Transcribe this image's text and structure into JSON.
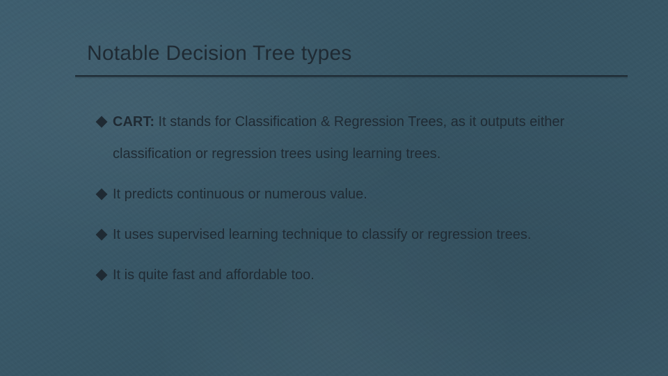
{
  "slide": {
    "title": "Notable Decision Tree types",
    "bullets": [
      {
        "lead": "CART:",
        "text": " It stands for Classification & Regression Trees, as it outputs either classification or regression trees using learning trees."
      },
      {
        "lead": "",
        "text": "It predicts continuous or numerous value."
      },
      {
        "lead": "",
        "text": "It uses supervised learning technique to classify or regression trees."
      },
      {
        "lead": "",
        "text": "It is quite fast and affordable too."
      }
    ]
  },
  "style": {
    "background_color": "#3a5a6b",
    "text_color": "#1f2a33",
    "title_fontsize": 30,
    "body_fontsize": 20,
    "bullet_marker": "diamond",
    "rule_color": "#1e2a33",
    "font_family": "Arial"
  }
}
